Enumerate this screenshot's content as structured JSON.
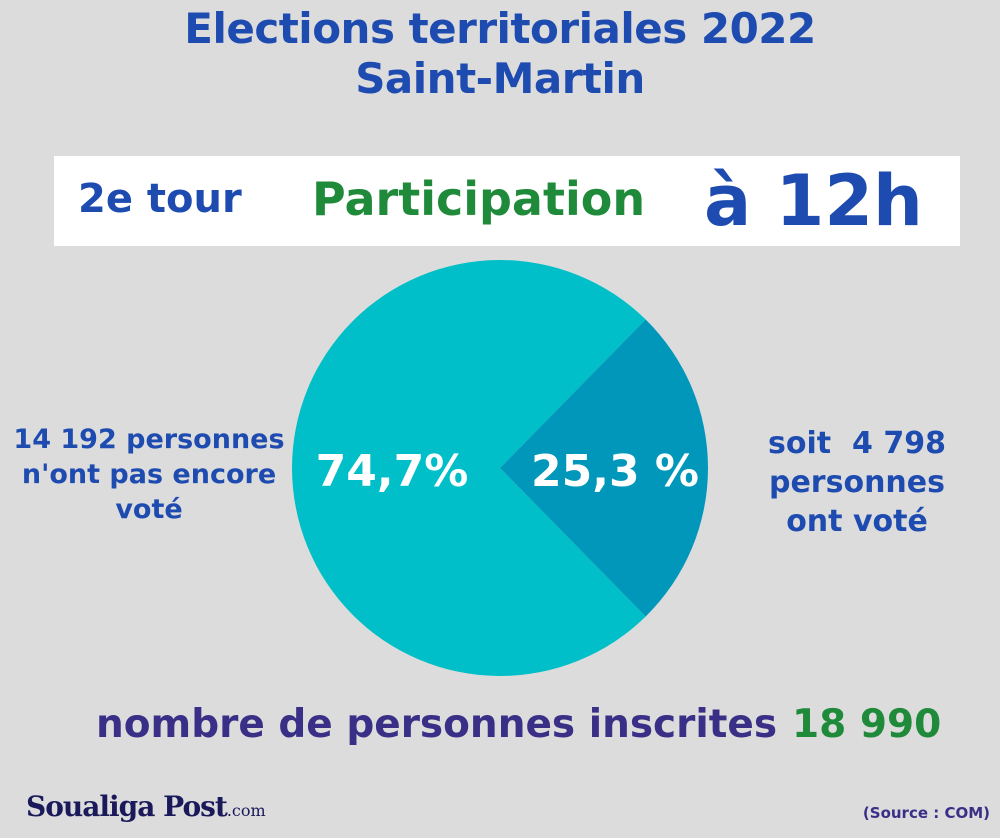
{
  "header": {
    "title_line1": "Elections territoriales 2022",
    "title_line2": "Saint-Martin"
  },
  "banner": {
    "round": "2e tour",
    "metric": "Participation",
    "time": "à 12h"
  },
  "chart_data": {
    "type": "pie",
    "slices": [
      {
        "label": "74,7%",
        "value": 74.7,
        "color": "#00bfc8"
      },
      {
        "label": "25,3 %",
        "value": 25.3,
        "color": "#0097ba"
      }
    ]
  },
  "annotations": {
    "left_lines": [
      "14 192 personnes",
      "n'ont pas encore",
      "voté"
    ],
    "right_lines": [
      "soit  4 798",
      "personnes",
      "ont voté"
    ]
  },
  "footer": {
    "registered_label": "nombre de personnes inscrites",
    "registered_value": "18 990",
    "logo": "Soualiga Post",
    "logo_suffix": ".com",
    "source": "(Source : COM)"
  },
  "colors": {
    "background": "#dcdcdc",
    "title_blue": "#1e4bb0",
    "green": "#1f8a3a",
    "footer_purple": "#3a2f86",
    "slice_light": "#00bfc8",
    "slice_dark": "#0097ba"
  }
}
